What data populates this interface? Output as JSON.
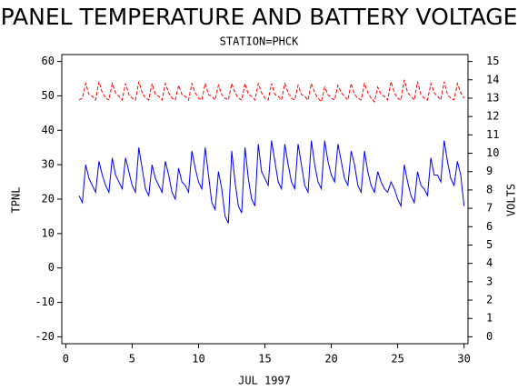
{
  "chart_data": {
    "type": "line",
    "title": "PANEL TEMPERATURE AND BATTERY VOLTAGE",
    "subtitle": "STATION=PHCK",
    "xlabel": "JUL 1997",
    "ylabel": "TPNL",
    "y2label": "VOLTS",
    "xlim": [
      -0.3,
      30.3
    ],
    "xticks": [
      0,
      5,
      10,
      15,
      20,
      25,
      30
    ],
    "ylim": [
      -22,
      62
    ],
    "yticks": [
      -20,
      -10,
      0,
      10,
      20,
      30,
      40,
      50,
      60
    ],
    "y2lim": [
      -0.375,
      15.375
    ],
    "y2ticks": [
      0,
      1,
      2,
      3,
      4,
      5,
      6,
      7,
      8,
      9,
      10,
      11,
      12,
      13,
      14,
      15
    ],
    "x": [
      1,
      1.25,
      1.5,
      1.75,
      2,
      2.25,
      2.5,
      2.75,
      3,
      3.25,
      3.5,
      3.75,
      4,
      4.25,
      4.5,
      4.75,
      5,
      5.25,
      5.5,
      5.75,
      6,
      6.25,
      6.5,
      6.75,
      7,
      7.25,
      7.5,
      7.75,
      8,
      8.25,
      8.5,
      8.75,
      9,
      9.25,
      9.5,
      9.75,
      10,
      10.25,
      10.5,
      10.75,
      11,
      11.25,
      11.5,
      11.75,
      12,
      12.25,
      12.5,
      12.75,
      13,
      13.25,
      13.5,
      13.75,
      14,
      14.25,
      14.5,
      14.75,
      15,
      15.25,
      15.5,
      15.75,
      16,
      16.25,
      16.5,
      16.75,
      17,
      17.25,
      17.5,
      17.75,
      18,
      18.25,
      18.5,
      18.75,
      19,
      19.25,
      19.5,
      19.75,
      20,
      20.25,
      20.5,
      20.75,
      21,
      21.25,
      21.5,
      21.75,
      22,
      22.25,
      22.5,
      22.75,
      23,
      23.25,
      23.5,
      23.75,
      24,
      24.25,
      24.5,
      24.75,
      25,
      25.25,
      25.5,
      25.75,
      26,
      26.25,
      26.5,
      26.75,
      27,
      27.25,
      27.5,
      27.75,
      28,
      28.25,
      28.5,
      28.75,
      29,
      29.25,
      29.5,
      29.75,
      30
    ],
    "series": [
      {
        "color": "#0000ff",
        "axis": "y",
        "dashed": false,
        "values": [
          21,
          19,
          30,
          26,
          24,
          22,
          31,
          27,
          24,
          22,
          32,
          27,
          25,
          23,
          32,
          28,
          24,
          22,
          35,
          29,
          23,
          21,
          30,
          26,
          24,
          22,
          31,
          27,
          22,
          20,
          29,
          25,
          24,
          22,
          34,
          29,
          25,
          23,
          35,
          27,
          19,
          17,
          28,
          23,
          15,
          13,
          34,
          25,
          18,
          16,
          35,
          26,
          20,
          18,
          36,
          28,
          26,
          24,
          37,
          31,
          25,
          23,
          36,
          30,
          25,
          23,
          36,
          30,
          24,
          22,
          37,
          30,
          25,
          23,
          37,
          31,
          27,
          25,
          36,
          31,
          26,
          24,
          34,
          30,
          24,
          22,
          34,
          28,
          24,
          22,
          28,
          25,
          23,
          22,
          25,
          23,
          20,
          18,
          30,
          25,
          21,
          19,
          28,
          24,
          23,
          21,
          32,
          27,
          27,
          25,
          37,
          31,
          26,
          24,
          31,
          27,
          18
        ]
      },
      {
        "color": "#ff0000",
        "axis": "y2",
        "dashed": true,
        "values": [
          12.9,
          13.0,
          13.8,
          13.2,
          13.1,
          12.9,
          13.9,
          13.3,
          13.0,
          12.9,
          13.8,
          13.3,
          13.1,
          12.9,
          13.8,
          13.2,
          13.0,
          12.9,
          13.9,
          13.3,
          13.0,
          12.9,
          13.8,
          13.2,
          13.1,
          12.9,
          13.8,
          13.3,
          13.0,
          12.9,
          13.7,
          13.2,
          13.1,
          12.9,
          13.8,
          13.3,
          13.0,
          12.9,
          13.8,
          13.2,
          13.1,
          12.9,
          13.7,
          13.2,
          13.0,
          12.9,
          13.8,
          13.3,
          13.0,
          12.9,
          13.8,
          13.2,
          13.1,
          12.9,
          13.8,
          13.3,
          13.0,
          12.9,
          13.8,
          13.2,
          13.1,
          12.9,
          13.8,
          13.3,
          13.0,
          12.9,
          13.7,
          13.2,
          13.1,
          12.9,
          13.8,
          13.3,
          13.0,
          12.8,
          13.6,
          13.2,
          13.0,
          12.9,
          13.7,
          13.3,
          13.1,
          12.9,
          13.8,
          13.2,
          13.0,
          12.9,
          13.8,
          13.3,
          13.0,
          12.8,
          13.6,
          13.2,
          13.1,
          12.9,
          13.9,
          13.3,
          13.0,
          12.9,
          14.0,
          13.3,
          13.1,
          12.9,
          13.9,
          13.2,
          13.0,
          12.9,
          13.8,
          13.3,
          13.1,
          12.9,
          13.9,
          13.2,
          13.0,
          12.9,
          13.8,
          13.3,
          13.0
        ]
      }
    ]
  }
}
